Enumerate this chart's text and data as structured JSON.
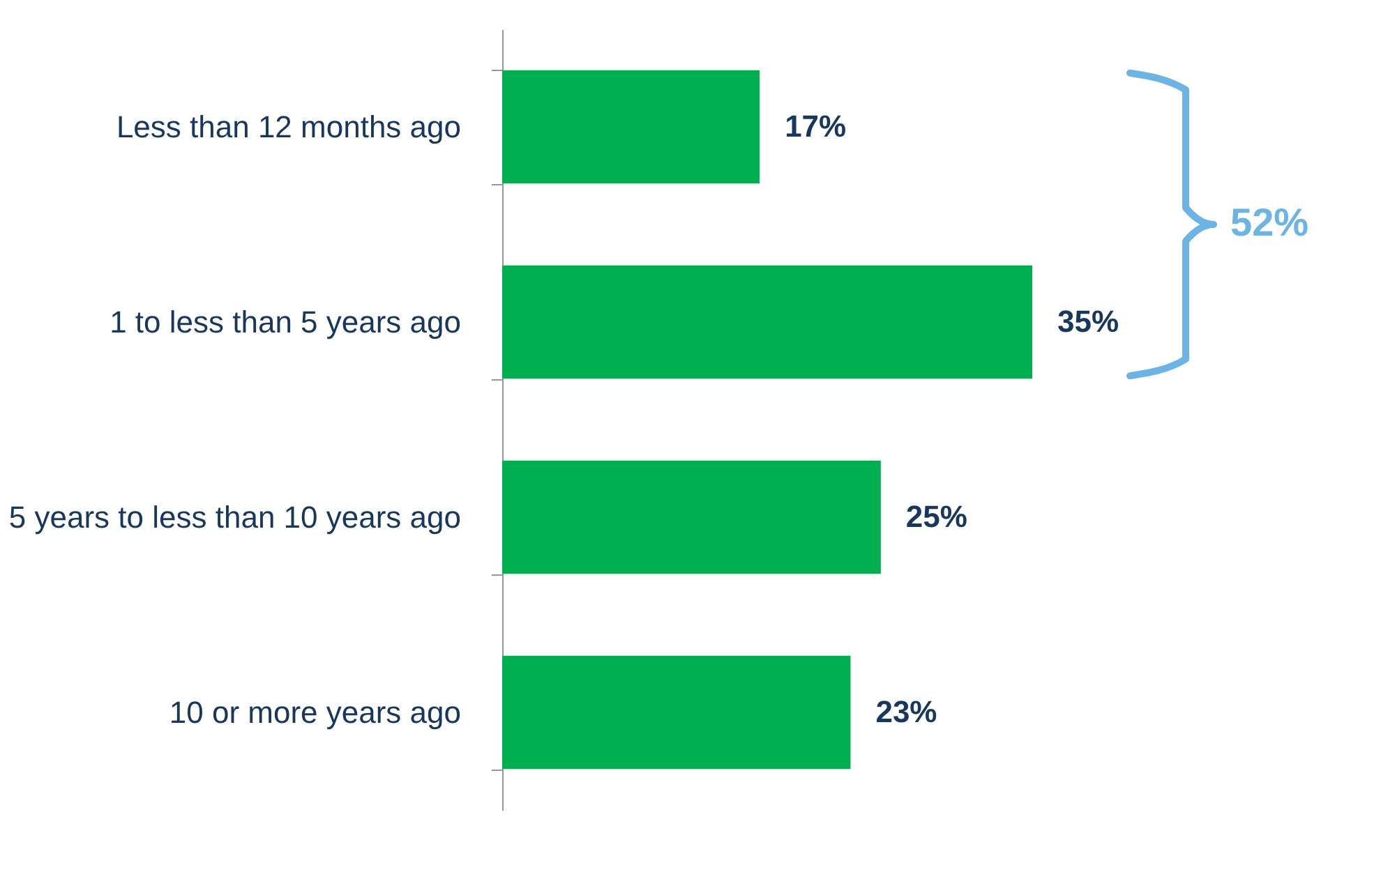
{
  "chart_data": {
    "type": "bar",
    "orientation": "horizontal",
    "categories": [
      "Less than 12 months ago",
      "1 to less than 5 years ago",
      "5 years to less than 10 years ago",
      "10 or more years ago"
    ],
    "values": [
      17,
      35,
      25,
      23
    ],
    "value_labels": [
      "17%",
      "35%",
      "25%",
      "23%"
    ],
    "color": "#00b050",
    "grid": false,
    "annotations": [
      "52%"
    ]
  }
}
